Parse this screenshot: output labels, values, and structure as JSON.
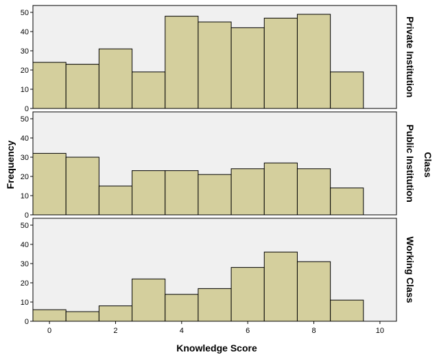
{
  "chart_data": {
    "type": "bar",
    "subtype": "histogram-panel",
    "xlabel": "Knowledge Score",
    "ylabel": "Frequency",
    "facet_title": "Class",
    "xlim": [
      -0.5,
      10.5
    ],
    "xticks": [
      0,
      2,
      4,
      6,
      8,
      10
    ],
    "ylim": [
      0,
      50
    ],
    "yticks": [
      0,
      10,
      20,
      30,
      40,
      50
    ],
    "bins": [
      0,
      1,
      2,
      3,
      4,
      5,
      6,
      7,
      8,
      9
    ],
    "bin_width": 1,
    "grid": false,
    "colors": {
      "bar_fill": "#d4cf9d",
      "bar_stroke": "#000000",
      "panel_bg": "#f0f0f0"
    },
    "series": [
      {
        "name": "Private Institution",
        "values": [
          24,
          23,
          31,
          19,
          48,
          45,
          42,
          47,
          49,
          19
        ]
      },
      {
        "name": "Public Institution",
        "values": [
          32,
          30,
          15,
          23,
          23,
          21,
          24,
          27,
          24,
          14
        ]
      },
      {
        "name": "Working Class",
        "values": [
          6,
          5,
          8,
          22,
          14,
          17,
          28,
          36,
          31,
          11
        ]
      }
    ]
  }
}
